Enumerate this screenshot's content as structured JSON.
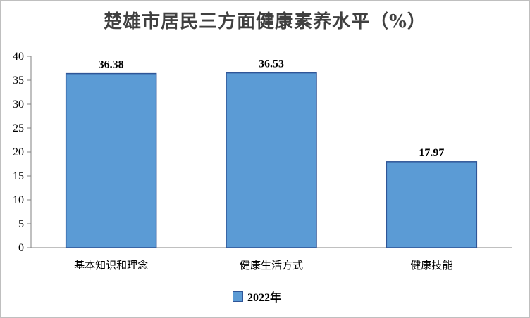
{
  "chart_data": {
    "type": "bar",
    "title": "楚雄市居民三方面健康素养水平（%）",
    "categories": [
      "基本知识和理念",
      "健康生活方式",
      "健康技能"
    ],
    "series": [
      {
        "name": "2022年",
        "values": [
          36.38,
          36.53,
          17.97
        ]
      }
    ],
    "data_labels": [
      "36.38",
      "36.53",
      "17.97"
    ],
    "ylim": [
      0,
      40
    ],
    "yticks": [
      0,
      5,
      10,
      15,
      20,
      25,
      30,
      35,
      40
    ],
    "grid": false,
    "legend_position": "bottom",
    "bar_color": "#5b9bd5",
    "bar_border_color": "#2f5597"
  }
}
